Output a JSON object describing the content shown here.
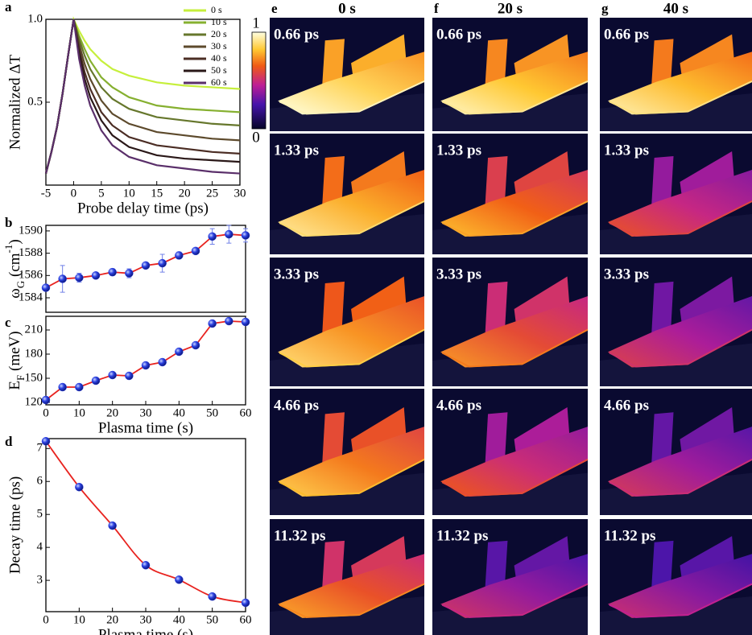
{
  "chart_data": [
    {
      "type": "line",
      "panel": "a",
      "y_label": "Normalized ΔT",
      "x_label": "Probe delay time (ps)",
      "x": [
        -5,
        -4,
        -3,
        -2,
        -1,
        0,
        1,
        2,
        3,
        5,
        7,
        10,
        15,
        20,
        25,
        30
      ],
      "xlim": [
        -5,
        30
      ],
      "xticks": [
        -5,
        0,
        5,
        10,
        15,
        20,
        25,
        30
      ],
      "ylim": [
        0,
        1
      ],
      "yticks": [
        0.5,
        {
          "value": 1,
          "label": "1.0"
        }
      ],
      "series": [
        {
          "name": "0 s",
          "color": "#c6ef3c",
          "values": [
            0.07,
            0.2,
            0.35,
            0.55,
            0.78,
            1.0,
            0.93,
            0.87,
            0.82,
            0.75,
            0.7,
            0.66,
            0.62,
            0.6,
            0.59,
            0.58
          ]
        },
        {
          "name": "10 s",
          "color": "#86b030",
          "values": [
            0.07,
            0.2,
            0.35,
            0.55,
            0.78,
            1.0,
            0.9,
            0.82,
            0.75,
            0.65,
            0.59,
            0.53,
            0.48,
            0.46,
            0.45,
            0.44
          ]
        },
        {
          "name": "20 s",
          "color": "#66772c",
          "values": [
            0.07,
            0.2,
            0.35,
            0.55,
            0.78,
            1.0,
            0.88,
            0.78,
            0.7,
            0.59,
            0.52,
            0.46,
            0.41,
            0.39,
            0.37,
            0.36
          ]
        },
        {
          "name": "30 s",
          "color": "#5d4a2c",
          "values": [
            0.07,
            0.2,
            0.35,
            0.55,
            0.78,
            1.0,
            0.85,
            0.73,
            0.64,
            0.51,
            0.43,
            0.37,
            0.32,
            0.3,
            0.28,
            0.27
          ]
        },
        {
          "name": "40 s",
          "color": "#4b2d24",
          "values": [
            0.07,
            0.2,
            0.35,
            0.55,
            0.78,
            1.0,
            0.82,
            0.68,
            0.58,
            0.44,
            0.36,
            0.29,
            0.24,
            0.22,
            0.2,
            0.19
          ]
        },
        {
          "name": "50 s",
          "color": "#2a1818",
          "values": [
            0.07,
            0.2,
            0.35,
            0.55,
            0.78,
            1.0,
            0.79,
            0.64,
            0.53,
            0.39,
            0.3,
            0.23,
            0.18,
            0.16,
            0.15,
            0.14
          ]
        },
        {
          "name": "60 s",
          "color": "#5a2f6a",
          "values": [
            0.07,
            0.2,
            0.35,
            0.55,
            0.78,
            1.0,
            0.76,
            0.6,
            0.48,
            0.33,
            0.24,
            0.17,
            0.12,
            0.1,
            0.08,
            0.07
          ]
        }
      ]
    },
    {
      "type": "scatter_line",
      "panel": "b",
      "y_label": {
        "symbol": "ω",
        "subscript": "G",
        "unit": " (cm",
        "superscript": "-1",
        "close": ")"
      },
      "x": [
        0,
        5,
        10,
        15,
        20,
        25,
        30,
        35,
        40,
        45,
        50,
        55,
        60
      ],
      "values": [
        1584.9,
        1585.7,
        1585.8,
        1586.0,
        1586.3,
        1586.2,
        1586.9,
        1587.1,
        1587.8,
        1588.2,
        1589.5,
        1589.7,
        1589.6
      ],
      "errors": [
        0.2,
        1.2,
        0.4,
        0.2,
        0.3,
        0.4,
        0.2,
        0.8,
        0.3,
        0.2,
        0.7,
        0.8,
        0.6
      ],
      "xlim": [
        0,
        60
      ],
      "ylim": [
        1582.7,
        1590.5
      ],
      "yticks": [
        1584,
        1586,
        1588,
        1590
      ],
      "color": "#e8231f",
      "marker_color": "#2a3fe0"
    },
    {
      "type": "scatter_line",
      "panel": "c",
      "y_label": {
        "symbol": "E",
        "subscript": "F",
        "unit": " (meV)"
      },
      "x_label": "Plasma time (s)",
      "x": [
        0,
        5,
        10,
        15,
        20,
        25,
        30,
        35,
        40,
        45,
        50,
        55,
        60
      ],
      "values": [
        123,
        139,
        139,
        147,
        154,
        153,
        166,
        170,
        183,
        191,
        218,
        221,
        220
      ],
      "xlim": [
        0,
        60
      ],
      "xticks": [
        0,
        10,
        20,
        30,
        40,
        50,
        60
      ],
      "ylim": [
        117,
        227
      ],
      "yticks": [
        120,
        150,
        180,
        210
      ],
      "color": "#e8231f",
      "marker_color": "#2a3fe0"
    },
    {
      "type": "scatter_line",
      "panel": "d",
      "smooth": true,
      "y_label": "Decay time (ps)",
      "x_label": "Plasma time (s)",
      "x": [
        0,
        10,
        20,
        30,
        40,
        50,
        60
      ],
      "values": [
        7.22,
        5.83,
        4.66,
        3.46,
        3.02,
        2.51,
        2.32
      ],
      "xlim": [
        0,
        60
      ],
      "xticks": [
        0,
        10,
        20,
        30,
        40,
        50,
        60
      ],
      "ylim": [
        2.05,
        7.3
      ],
      "yticks": [
        3,
        4,
        5,
        6,
        7
      ],
      "color": "#e8231f",
      "marker_color": "#2a3fe0"
    }
  ],
  "image_panel": {
    "panels": [
      "e",
      "f",
      "g"
    ],
    "columns": [
      "0 s",
      "20 s",
      "40 s"
    ],
    "rows": [
      "0.66 ps",
      "1.33 ps",
      "3.33 ps",
      "4.66 ps",
      "11.32 ps"
    ],
    "colorbar": {
      "max": "1",
      "min": "0"
    }
  }
}
